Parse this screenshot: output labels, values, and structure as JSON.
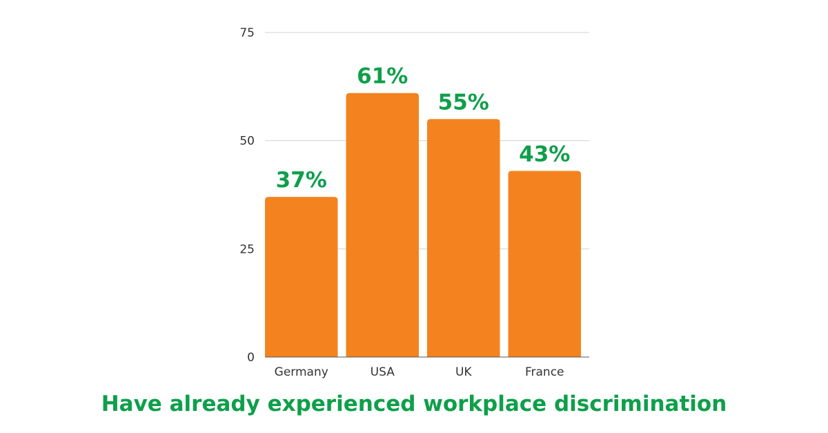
{
  "chart_data": {
    "type": "bar",
    "title": "Have already experienced workplace discrimination",
    "categories": [
      "Germany",
      "USA",
      "UK",
      "France"
    ],
    "values": [
      37,
      61,
      55,
      43
    ],
    "data_labels": [
      "37%",
      "61%",
      "55%",
      "43%"
    ],
    "ylim": [
      0,
      75
    ],
    "yticks": [
      0,
      25,
      50,
      75
    ],
    "grid": true,
    "legend": "none",
    "colors": {
      "bar": "#F4831F",
      "label": "#0E9F4A",
      "title": "#0E9F4A",
      "grid": "#D0D0D0",
      "axis": "#555555"
    }
  }
}
